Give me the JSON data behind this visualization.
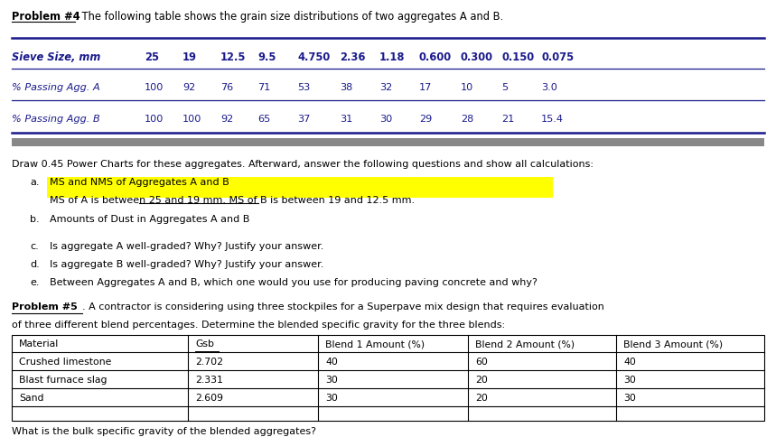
{
  "title_bold": "Problem #4",
  "title_rest": ": The following table shows the grain size distributions of two aggregates A and B.",
  "table1_headers": [
    "Sieve Size, mm",
    "25",
    "19",
    "12.5",
    "9.5",
    "4.750",
    "2.36",
    "1.18",
    "0.600",
    "0.300",
    "0.150",
    "0.075"
  ],
  "table1_row1": [
    "% Passing Agg. A",
    "100",
    "92",
    "76",
    "71",
    "53",
    "38",
    "32",
    "17",
    "10",
    "5",
    "3.0"
  ],
  "table1_row2": [
    "% Passing Agg. B",
    "100",
    "100",
    "92",
    "65",
    "37",
    "31",
    "30",
    "29",
    "28",
    "21",
    "15.4"
  ],
  "text_draw": "Draw 0.45 Power Charts for these aggregates. Afterward, answer the following questions and show all calculations:",
  "items_a_label": "a.",
  "items_a_text": "MS and NMS of Aggregates A and B",
  "highlight_text": "MS of A is between 25 and 19 mm. MS of B is between 19 and 12.5 mm.",
  "items_b_label": "b.",
  "items_b_text": "Amounts of Dust in Aggregates A and B",
  "items_c_label": "c.",
  "items_c_text": "Is aggregate A well-graded? Why? Justify your answer.",
  "items_d_label": "d.",
  "items_d_text": "Is aggregate B well-graded? Why? Justify your answer.",
  "items_e_label": "e.",
  "items_e_text": "Between Aggregates A and B, which one would you use for producing paving concrete and why?",
  "prob5_bold": "Problem #5",
  "prob5_line1": ". A contractor is considering using three stockpiles for a Superpave mix design that requires evaluation",
  "prob5_line2": "of three different blend percentages. Determine the blended specific gravity for the three blends:",
  "table2_headers": [
    "Material",
    "Gsb",
    "Blend 1 Amount (%)",
    "Blend 2 Amount (%)",
    "Blend 3 Amount (%)"
  ],
  "table2_rows": [
    [
      "Crushed limestone",
      "2.702",
      "40",
      "60",
      "40"
    ],
    [
      "Blast furnace slag",
      "2.331",
      "30",
      "20",
      "30"
    ],
    [
      "Sand",
      "2.609",
      "30",
      "20",
      "30"
    ]
  ],
  "footer_text": "What is the bulk specific gravity of the blended aggregates?",
  "bg_color": "#ffffff",
  "text_color": "#1a1a8c",
  "highlight_bg": "#ffff00",
  "separator_color": "#888888",
  "table_line_color": "#1a1a8c"
}
